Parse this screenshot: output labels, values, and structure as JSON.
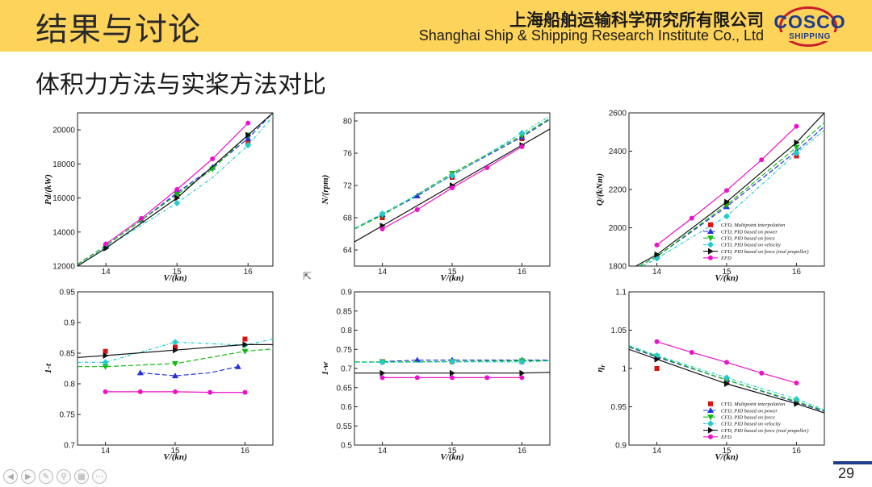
{
  "header": {
    "title": "结果与讨论",
    "org_cn": "上海船舶运输科学研究所有限公司",
    "org_en": "Shanghai Ship & Shipping Research Institute Co., Ltd",
    "logo_top": "COSCO",
    "logo_bottom": "SHIPPING"
  },
  "subtitle": "体积力方法与实桨方法对比",
  "page_number": "29",
  "colors": {
    "header_bg": "#fdd35a",
    "brand_blue": "#1e3c8c",
    "brand_red": "#c8202b"
  },
  "legend": [
    {
      "label": "CFD, Multipoint interpolation",
      "color": "#dd1111",
      "marker": "square",
      "dash": ""
    },
    {
      "label": "CFD, PID based on power",
      "color": "#2233dd",
      "marker": "triangle",
      "dash": "6,3"
    },
    {
      "label": "CFD, PID based on force",
      "color": "#11bb11",
      "marker": "tri-down",
      "dash": "6,3"
    },
    {
      "label": "CFD, PID based on velocity",
      "color": "#22cccc",
      "marker": "diamond",
      "dash": "4,2,1,2"
    },
    {
      "label": "CFD, PID based on force (real propeller)",
      "color": "#111111",
      "marker": "play",
      "dash": ""
    },
    {
      "label": "EFD",
      "color": "#ee11cc",
      "marker": "circle",
      "dash": ""
    }
  ],
  "chart_data": [
    {
      "type": "line",
      "id": "pd",
      "xlabel": "V/(kn)",
      "ylabel": "Pd/(kW)",
      "xlim": [
        13.6,
        16.35
      ],
      "ylim": [
        12000,
        21000
      ],
      "xticks": [
        14,
        15,
        16
      ],
      "yticks": [
        12000,
        14000,
        16000,
        18000,
        20000
      ],
      "ytick_labels": [
        "12000",
        "14000",
        "16000",
        "18000",
        "20000"
      ],
      "show_legend": false,
      "series": [
        {
          "name": "CFD, Multipoint interpolation",
          "x": [
            14,
            15,
            16
          ],
          "y": [
            13200,
            16300,
            19300
          ],
          "line": false
        },
        {
          "name": "CFD, PID based on power",
          "x": [
            13.6,
            14,
            14.5,
            15,
            15.5,
            16,
            16.35
          ],
          "y": [
            12100,
            13200,
            14700,
            16300,
            17800,
            19500,
            21000
          ],
          "line": true,
          "marks_x": [
            14,
            14.5,
            15,
            15.5,
            16
          ]
        },
        {
          "name": "CFD, PID based on force",
          "x": [
            13.6,
            14,
            14.5,
            15,
            15.5,
            16,
            16.35
          ],
          "y": [
            12100,
            13200,
            14700,
            16200,
            17700,
            19700,
            21000
          ],
          "line": true,
          "marks_x": [
            14,
            14.5,
            15,
            15.5,
            16
          ]
        },
        {
          "name": "CFD, PID based on velocity",
          "x": [
            13.6,
            14,
            14.5,
            15,
            15.5,
            16,
            16.35
          ],
          "y": [
            12000,
            13100,
            14400,
            15700,
            17200,
            19100,
            20800
          ],
          "line": true,
          "marks_x": [
            14,
            15,
            16
          ]
        },
        {
          "name": "CFD, PID based on force (real propeller)",
          "x": [
            13.6,
            14,
            15,
            16,
            16.35
          ],
          "y": [
            12000,
            13050,
            16000,
            19700,
            21000
          ],
          "line": true,
          "marks_x": [
            14,
            15,
            16
          ]
        },
        {
          "name": "EFD",
          "x": [
            14,
            14.5,
            15,
            15.5,
            16
          ],
          "y": [
            13300,
            14800,
            16500,
            18300,
            20400
          ],
          "line": true,
          "marks_x": [
            14,
            14.5,
            15,
            15.5,
            16
          ]
        }
      ]
    },
    {
      "type": "line",
      "id": "n",
      "xlabel": "V/(kn)",
      "ylabel": "N/(rpm)",
      "xlim": [
        13.6,
        16.4
      ],
      "ylim": [
        62,
        81
      ],
      "xticks": [
        14,
        15,
        16
      ],
      "yticks": [
        64,
        68,
        72,
        76,
        80
      ],
      "ytick_labels": [
        "64",
        "68",
        "72",
        "76",
        "80"
      ],
      "show_legend": false,
      "series": [
        {
          "name": "CFD, Multipoint interpolation",
          "x": [
            14,
            15,
            16
          ],
          "y": [
            68.0,
            73.0,
            77.8
          ],
          "line": false
        },
        {
          "name": "CFD, PID based on power",
          "x": [
            13.6,
            14,
            14.5,
            15,
            15.5,
            16,
            16.4
          ],
          "y": [
            66.6,
            68.4,
            70.7,
            73.3,
            75.7,
            78.0,
            80.2
          ],
          "line": true,
          "marks_x": [
            14,
            14.5,
            15,
            16
          ]
        },
        {
          "name": "CFD, PID based on force",
          "x": [
            13.6,
            14,
            15,
            16,
            16.4
          ],
          "y": [
            66.6,
            68.3,
            73.5,
            78.2,
            80.3
          ],
          "line": true,
          "marks_x": [
            14,
            15,
            16
          ]
        },
        {
          "name": "CFD, PID based on velocity",
          "x": [
            13.6,
            14,
            15,
            16,
            16.4
          ],
          "y": [
            66.7,
            68.5,
            73.2,
            78.5,
            80.6
          ],
          "line": true,
          "marks_x": [
            14,
            15,
            16
          ]
        },
        {
          "name": "CFD, PID based on force (real propeller)",
          "x": [
            13.6,
            14,
            15,
            16,
            16.4
          ],
          "y": [
            65.0,
            67.0,
            72.0,
            77.0,
            79.0
          ],
          "line": true,
          "marks_x": [
            14,
            15,
            16
          ]
        },
        {
          "name": "EFD",
          "x": [
            14,
            14.5,
            15,
            15.5,
            16
          ],
          "y": [
            66.6,
            69.0,
            71.7,
            74.2,
            76.8
          ],
          "line": true,
          "marks_x": [
            14,
            14.5,
            15,
            15.5,
            16
          ]
        }
      ]
    },
    {
      "type": "line",
      "id": "q",
      "xlabel": "V/(kn)",
      "ylabel": "Q/(kNm)",
      "xlim": [
        13.6,
        16.4
      ],
      "ylim": [
        1800,
        2600
      ],
      "xticks": [
        14,
        15,
        16
      ],
      "yticks": [
        1800,
        2000,
        2200,
        2400,
        2600
      ],
      "ytick_labels": [
        "1800",
        "2000",
        "2200",
        "2400",
        "2600"
      ],
      "show_legend": true,
      "legend_pos": "bottom-right",
      "series": [
        {
          "name": "CFD, Multipoint interpolation",
          "x": [
            14,
            15,
            16
          ],
          "y": [
            1850,
            2130,
            2375
          ],
          "line": false
        },
        {
          "name": "CFD, PID based on power",
          "x": [
            13.75,
            14,
            15,
            16,
            16.4
          ],
          "y": [
            1800,
            1850,
            2110,
            2400,
            2530
          ],
          "line": true,
          "marks_x": [
            14,
            15,
            16
          ]
        },
        {
          "name": "CFD, PID based on force",
          "x": [
            13.75,
            14,
            15,
            16,
            16.4
          ],
          "y": [
            1800,
            1850,
            2120,
            2420,
            2550
          ],
          "line": true,
          "marks_x": [
            14,
            15,
            16
          ]
        },
        {
          "name": "CFD, PID based on velocity",
          "x": [
            13.8,
            14,
            15,
            16,
            16.4
          ],
          "y": [
            1800,
            1840,
            2060,
            2390,
            2510
          ],
          "line": true,
          "marks_x": [
            14,
            15,
            16
          ]
        },
        {
          "name": "CFD, PID based on force (real propeller)",
          "x": [
            13.7,
            14,
            15,
            16,
            16.4
          ],
          "y": [
            1800,
            1860,
            2135,
            2445,
            2600
          ],
          "line": true,
          "marks_x": [
            14,
            15,
            16
          ]
        },
        {
          "name": "EFD",
          "x": [
            14,
            14.5,
            15,
            15.5,
            16
          ],
          "y": [
            1910,
            2050,
            2195,
            2355,
            2530
          ],
          "line": true,
          "marks_x": [
            14,
            14.5,
            15,
            15.5,
            16
          ]
        }
      ]
    },
    {
      "type": "line",
      "id": "1-t",
      "xlabel": "V/(kn)",
      "ylabel": "1-t",
      "xlim": [
        13.6,
        16.4
      ],
      "ylim": [
        0.7,
        0.95
      ],
      "xticks": [
        14,
        15,
        16
      ],
      "yticks": [
        0.7,
        0.75,
        0.8,
        0.85,
        0.9,
        0.95
      ],
      "ytick_labels": [
        "0.7",
        "0.75",
        "0.8",
        "0.85",
        "0.9",
        "0.95"
      ],
      "show_legend": false,
      "series": [
        {
          "name": "CFD, Multipoint interpolation",
          "x": [
            14,
            15,
            16
          ],
          "y": [
            0.853,
            0.86,
            0.873
          ],
          "line": false
        },
        {
          "name": "CFD, PID based on power",
          "x": [
            14.5,
            15,
            15.5,
            15.9
          ],
          "y": [
            0.818,
            0.813,
            0.818,
            0.828
          ],
          "line": true,
          "marks_x": [
            14.5,
            15,
            15.9
          ]
        },
        {
          "name": "CFD, PID based on force",
          "x": [
            13.6,
            14,
            15,
            16,
            16.4
          ],
          "y": [
            0.828,
            0.828,
            0.833,
            0.853,
            0.857
          ],
          "line": true,
          "marks_x": [
            14,
            15,
            16
          ]
        },
        {
          "name": "CFD, PID based on velocity",
          "x": [
            13.6,
            14,
            15,
            16,
            16.4
          ],
          "y": [
            0.835,
            0.835,
            0.868,
            0.863,
            0.873
          ],
          "line": true,
          "marks_x": [
            14,
            15,
            16
          ]
        },
        {
          "name": "CFD, PID based on force (real propeller)",
          "x": [
            13.6,
            14,
            15,
            16,
            16.4
          ],
          "y": [
            0.843,
            0.846,
            0.855,
            0.864,
            0.864
          ],
          "line": true,
          "marks_x": [
            14,
            15,
            16
          ]
        },
        {
          "name": "EFD",
          "x": [
            14,
            14.5,
            15,
            15.5,
            16
          ],
          "y": [
            0.787,
            0.787,
            0.787,
            0.786,
            0.786
          ],
          "line": true,
          "marks_x": [
            14,
            14.5,
            15,
            15.5,
            16
          ]
        }
      ]
    },
    {
      "type": "line",
      "id": "1-w",
      "xlabel": "V/(kn)",
      "ylabel": "1-w",
      "xlim": [
        13.6,
        16.4
      ],
      "ylim": [
        0.5,
        0.9
      ],
      "xticks": [
        14,
        15,
        16
      ],
      "yticks": [
        0.5,
        0.55,
        0.6,
        0.65,
        0.7,
        0.75,
        0.8,
        0.85,
        0.9
      ],
      "ytick_labels": [
        "0.5",
        "0.55",
        "0.6",
        "0.65",
        "0.7",
        "0.75",
        "0.8",
        "0.85",
        "0.9"
      ],
      "show_legend": false,
      "series": [
        {
          "name": "CFD, Multipoint interpolation",
          "x": [
            14,
            15,
            16
          ],
          "y": [
            0.718,
            0.718,
            0.718
          ],
          "line": false
        },
        {
          "name": "CFD, PID based on power",
          "x": [
            14,
            14.5,
            15,
            15.5,
            16,
            16.4
          ],
          "y": [
            0.718,
            0.722,
            0.722,
            0.722,
            0.722,
            0.722
          ],
          "line": true,
          "marks_x": [
            14.5,
            15,
            16
          ]
        },
        {
          "name": "CFD, PID based on force",
          "x": [
            13.6,
            14,
            15,
            16,
            16.4
          ],
          "y": [
            0.717,
            0.717,
            0.718,
            0.72,
            0.72
          ],
          "line": true,
          "marks_x": [
            14,
            15,
            16
          ]
        },
        {
          "name": "CFD, PID based on velocity",
          "x": [
            13.6,
            14,
            15,
            16,
            16.4
          ],
          "y": [
            0.716,
            0.716,
            0.717,
            0.717,
            0.72
          ],
          "line": true,
          "marks_x": [
            14,
            15,
            16
          ]
        },
        {
          "name": "CFD, PID based on force (real propeller)",
          "x": [
            13.6,
            14,
            15,
            16,
            16.4
          ],
          "y": [
            0.688,
            0.688,
            0.688,
            0.688,
            0.69
          ],
          "line": true,
          "marks_x": [
            14,
            15,
            16
          ]
        },
        {
          "name": "EFD",
          "x": [
            14,
            14.5,
            15,
            15.5,
            16
          ],
          "y": [
            0.676,
            0.676,
            0.676,
            0.676,
            0.676
          ],
          "line": true,
          "marks_x": [
            14,
            14.5,
            15,
            15.5,
            16
          ]
        }
      ]
    },
    {
      "type": "line",
      "id": "eta",
      "xlabel": "V/(kn)",
      "ylabel": "η",
      "ylabel_sub": "r",
      "xlim": [
        13.6,
        16.4
      ],
      "ylim": [
        0.9,
        1.1
      ],
      "xticks": [
        14,
        15,
        16
      ],
      "yticks": [
        0.9,
        0.95,
        1.0,
        1.05,
        1.1
      ],
      "ytick_labels": [
        "0.9",
        "0.95",
        "1",
        "1.05",
        "1.1"
      ],
      "show_legend": true,
      "legend_pos": "bottom-right",
      "series": [
        {
          "name": "CFD, Multipoint interpolation",
          "x": [
            14,
            15,
            16
          ],
          "y": [
            1.0,
            0.983,
            0.958
          ],
          "line": false
        },
        {
          "name": "CFD, PID based on power",
          "x": [
            13.6,
            14,
            15,
            16,
            16.4
          ],
          "y": [
            1.028,
            1.015,
            0.985,
            0.956,
            0.944
          ],
          "line": true,
          "marks_x": [
            14,
            15,
            16
          ]
        },
        {
          "name": "CFD, PID based on force",
          "x": [
            13.6,
            14,
            15,
            16,
            16.4
          ],
          "y": [
            1.029,
            1.016,
            0.985,
            0.957,
            0.945
          ],
          "line": true,
          "marks_x": [
            14,
            15,
            16
          ]
        },
        {
          "name": "CFD, PID based on velocity",
          "x": [
            13.6,
            14,
            15,
            16,
            16.4
          ],
          "y": [
            1.03,
            1.017,
            0.988,
            0.96,
            0.946
          ],
          "line": true,
          "marks_x": [
            14,
            15,
            16
          ]
        },
        {
          "name": "CFD, PID based on force (real propeller)",
          "x": [
            13.6,
            14,
            15,
            16,
            16.4
          ],
          "y": [
            1.025,
            1.012,
            0.98,
            0.954,
            0.942
          ],
          "line": true,
          "marks_x": [
            14,
            15,
            16
          ]
        },
        {
          "name": "EFD",
          "x": [
            14,
            14.5,
            15,
            15.5,
            16
          ],
          "y": [
            1.035,
            1.021,
            1.008,
            0.994,
            0.981
          ],
          "line": true,
          "marks_x": [
            14,
            14.5,
            15,
            15.5,
            16
          ]
        }
      ]
    }
  ]
}
